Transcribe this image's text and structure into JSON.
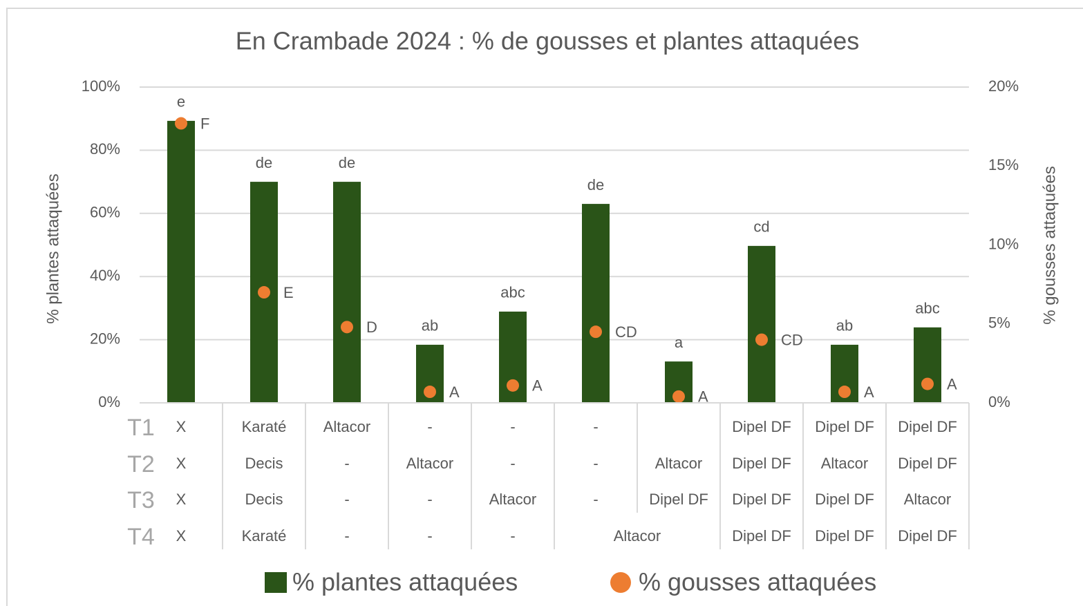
{
  "chart_data": {
    "type": "bar_dot",
    "title": "En Crambade 2024 : % de gousses et plantes attaquées",
    "y_label": "% plantes attaquées",
    "y2_label": "% gousses attaquées",
    "ylim": [
      0,
      100
    ],
    "yticks": [
      {
        "value": 0,
        "label": "0%"
      },
      {
        "value": 20,
        "label": "20%"
      },
      {
        "value": 40,
        "label": "40%"
      },
      {
        "value": 60,
        "label": "60%"
      },
      {
        "value": 80,
        "label": "80%"
      },
      {
        "value": 100,
        "label": "100%"
      }
    ],
    "y2lim": [
      0,
      20
    ],
    "y2ticks": [
      {
        "value": 0,
        "label": "0%"
      },
      {
        "value": 5,
        "label": "5%"
      },
      {
        "value": 10,
        "label": "10%"
      },
      {
        "value": 15,
        "label": "15%"
      },
      {
        "value": 20,
        "label": "20%"
      }
    ],
    "grid": true,
    "legend": "bottom",
    "series": [
      {
        "name": "% plantes attaquées",
        "color": "#2a5418",
        "kind": "bar",
        "values": [
          89.3,
          70,
          70,
          18.4,
          28.9,
          63,
          13.1,
          49.7,
          18.4,
          23.9
        ],
        "letters": [
          "e",
          "de",
          "de",
          "ab",
          "abc",
          "de",
          "a",
          "cd",
          "ab",
          "abc"
        ]
      },
      {
        "name": "% gousses attaquées",
        "color": "#ed7d31",
        "kind": "dot",
        "axis": "y2",
        "values": [
          17.7,
          7.0,
          4.8,
          0.7,
          1.1,
          4.5,
          0.4,
          4.0,
          0.7,
          1.2
        ],
        "letters": [
          "F",
          "E",
          "D",
          "A",
          "A",
          "CD",
          "A",
          "CD",
          "A",
          "A"
        ]
      }
    ],
    "treatments": [
      {
        "label": "T1",
        "cells": [
          "X",
          "Karaté",
          "Altacor",
          "-",
          "-",
          "-",
          null,
          "Dipel DF",
          "Dipel DF",
          "Dipel DF"
        ]
      },
      {
        "label": "T2",
        "cells": [
          "X",
          "Decis",
          "-",
          "Altacor",
          "-",
          "-",
          "Altacor",
          "Dipel DF",
          "Altacor",
          "Dipel DF"
        ]
      },
      {
        "label": "T3",
        "cells": [
          "X",
          "Decis",
          "-",
          "-",
          "Altacor",
          "-",
          "Dipel DF",
          "Dipel DF",
          "Dipel DF",
          "Altacor"
        ]
      },
      {
        "label": "T4",
        "cells": [
          "X",
          "Karaté",
          "-",
          "-",
          "-",
          "Altacor",
          null,
          "Dipel DF",
          "Dipel DF",
          "Dipel DF"
        ]
      }
    ]
  }
}
